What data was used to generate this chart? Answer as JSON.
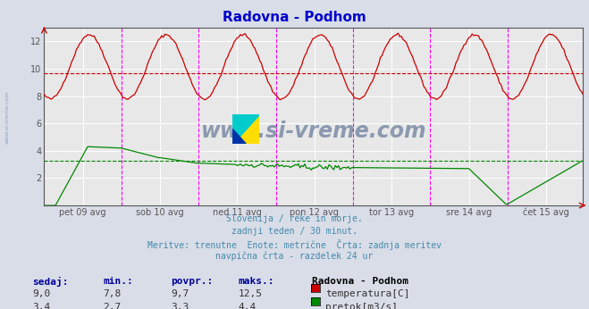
{
  "title": "Radovna - Podhom",
  "title_color": "#0000cc",
  "bg_color": "#d8dde8",
  "plot_bg_color": "#e8e8e8",
  "grid_color": "#ffffff",
  "x_labels": [
    "pet 09 avg",
    "sob 10 avg",
    "ned 11 avg",
    "pon 12 avg",
    "tor 13 avg",
    "sre 14 avg",
    "čet 15 avg"
  ],
  "x_label_color": "#555555",
  "y_min": 0,
  "y_max": 13,
  "y_ticks": [
    2,
    4,
    6,
    8,
    10,
    12
  ],
  "temp_color": "#cc0000",
  "flow_color": "#008800",
  "avg_temp": 9.7,
  "avg_flow": 3.3,
  "subtitle_lines": [
    "Slovenija / reke in morje.",
    "zadnji teden / 30 minut.",
    "Meritve: trenutne  Enote: metrične  Črta: zadnja meritev",
    "navpična črta - razdelek 24 ur"
  ],
  "subtitle_color": "#4488aa",
  "table_header": [
    "sedaj:",
    "min.:",
    "povpr.:",
    "maks.:"
  ],
  "table_header_color": "#000099",
  "table_station": "Radovna - Podhom",
  "table_rows": [
    {
      "values": [
        "9,0",
        "7,8",
        "9,7",
        "12,5"
      ],
      "label": "temperatura[C]",
      "color": "#cc0000"
    },
    {
      "values": [
        "3,4",
        "2,7",
        "3,3",
        "4,4"
      ],
      "label": "pretok[m3/s]",
      "color": "#008800"
    }
  ],
  "table_color": "#333333",
  "vline_color": "#ff00ff",
  "watermark": "www.si-vreme.com",
  "watermark_color": "#1a3a6a",
  "num_days": 7,
  "points_per_day": 48,
  "temp_min": 7.8,
  "temp_max": 12.5,
  "flow_min": 2.7,
  "flow_max": 4.4,
  "left_label_color": "#7788aa"
}
